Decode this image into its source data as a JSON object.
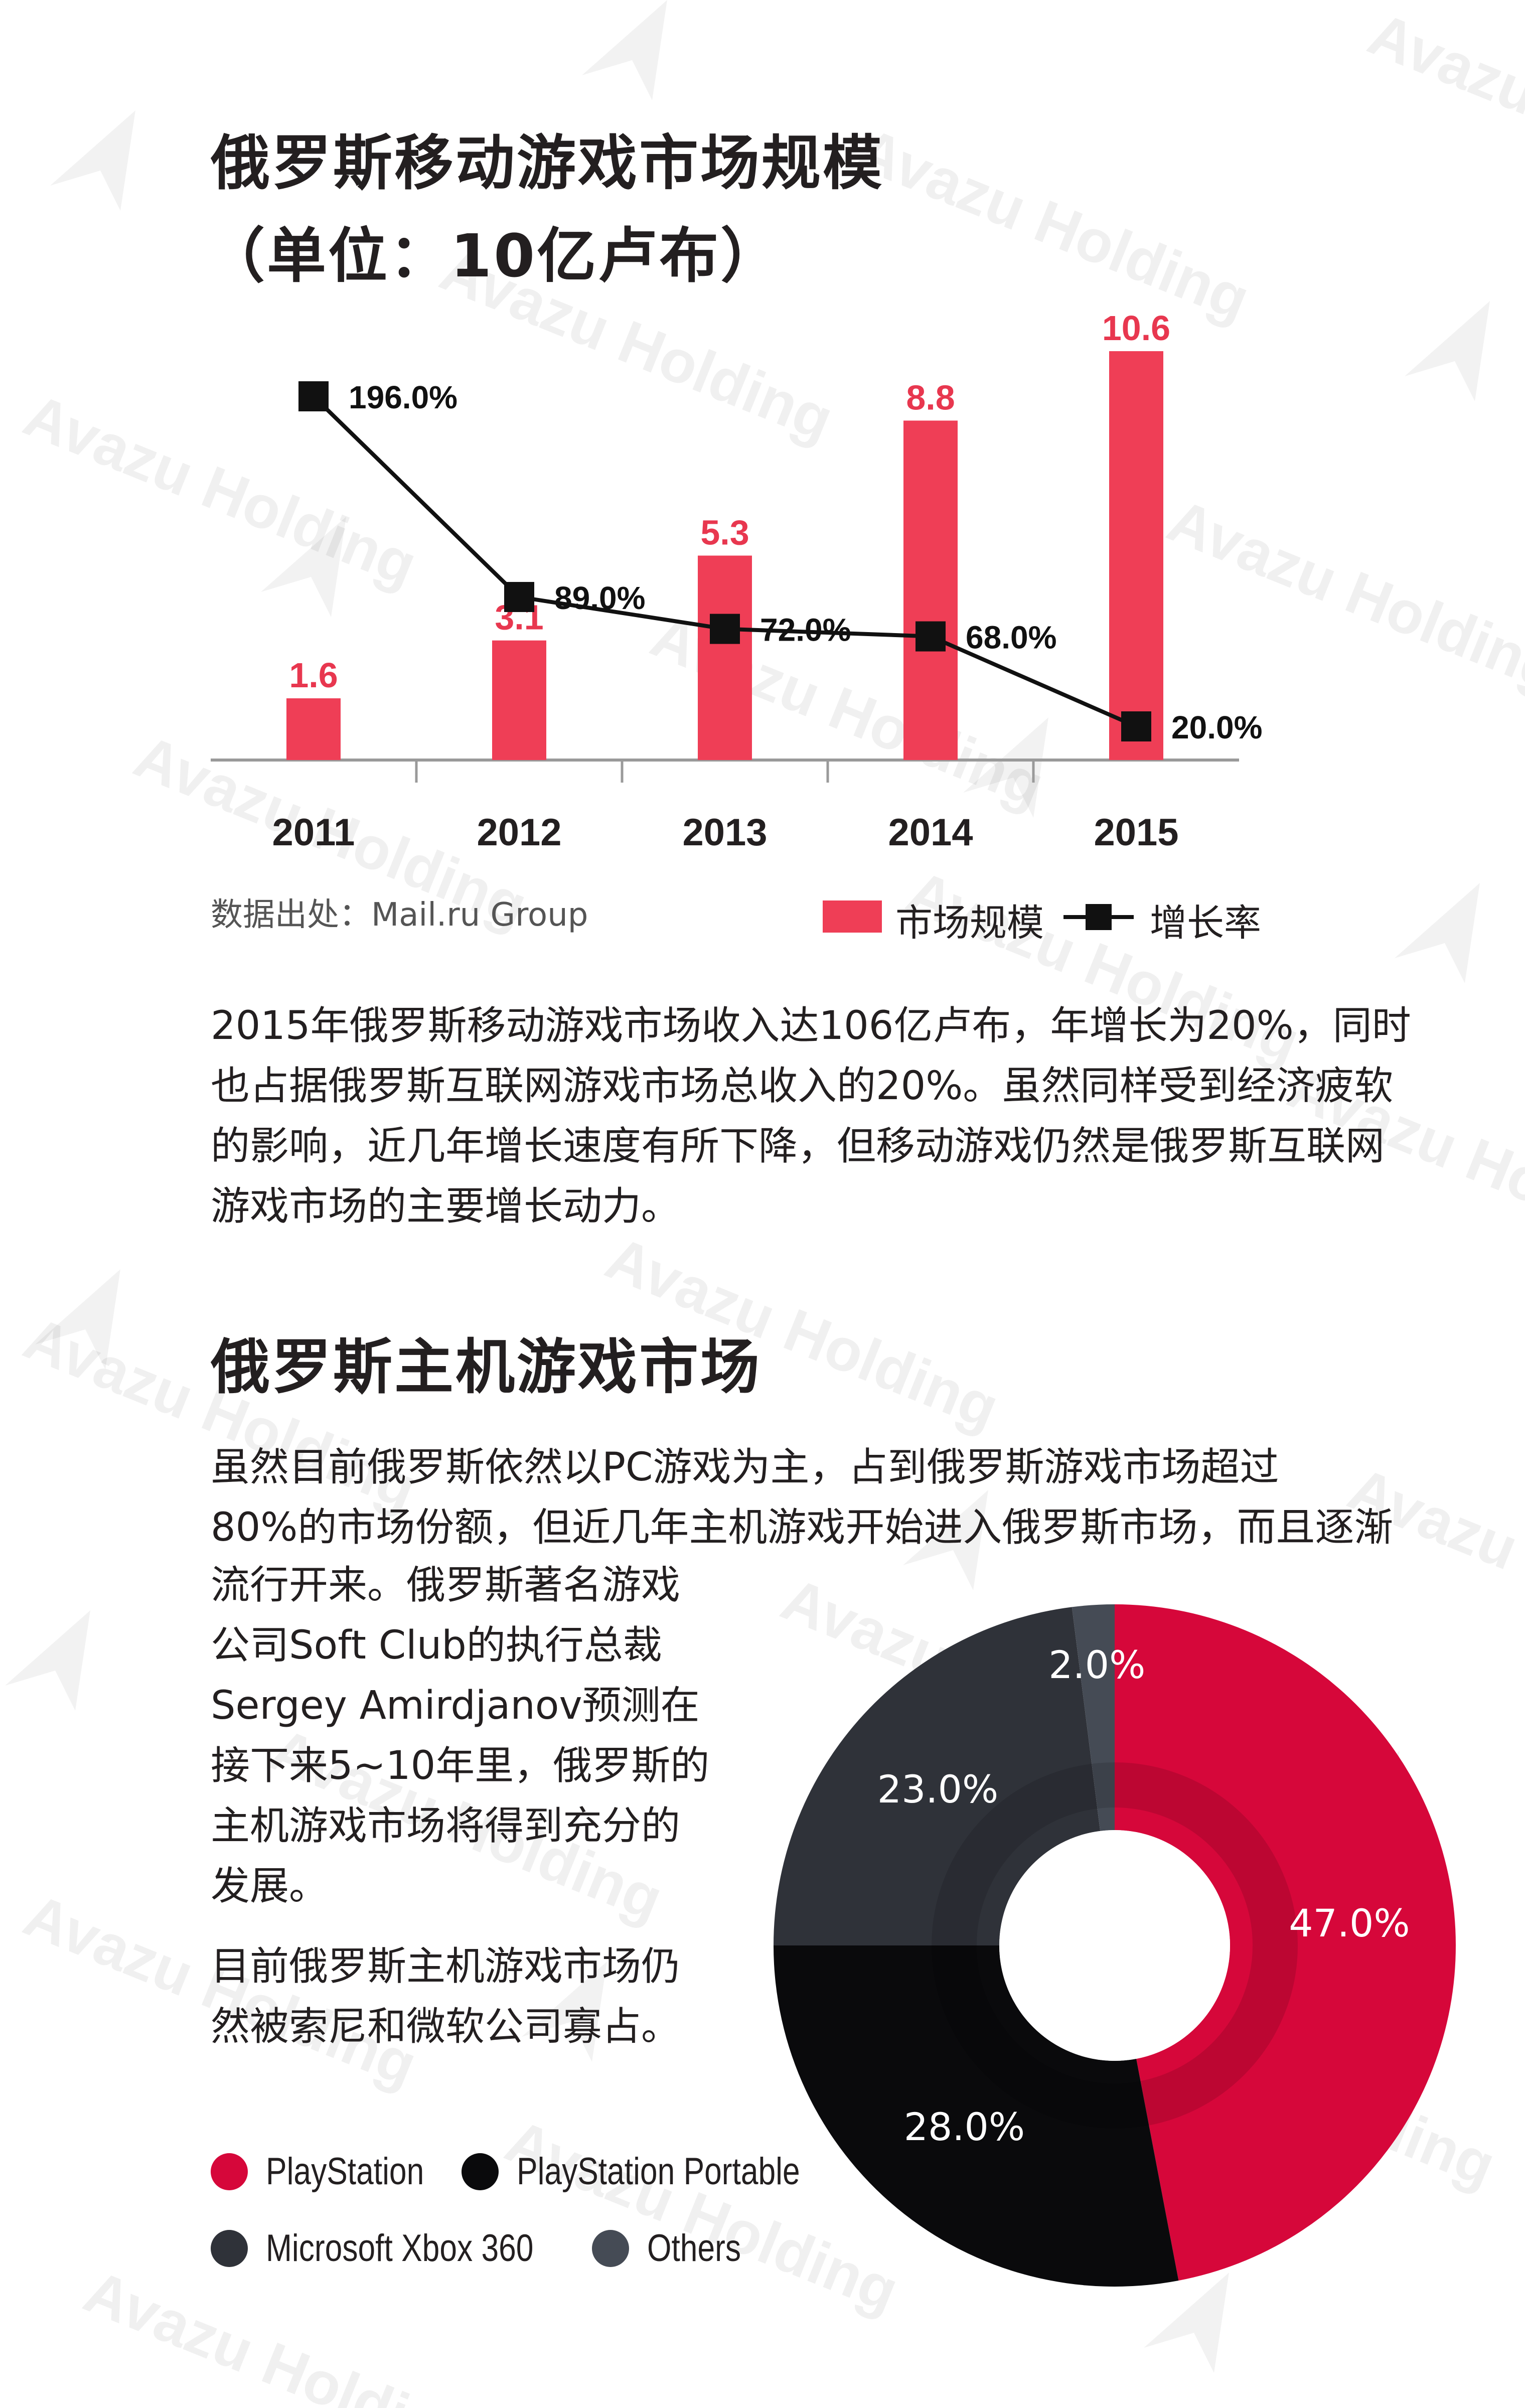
{
  "section1": {
    "title_line1": "俄罗斯移动游戏市场规模",
    "title_line2": "（单位：10亿卢布）",
    "source": "数据出处：Mail.ru Group",
    "legend_bar": "市场规模",
    "legend_line": "增长率",
    "paragraph_lines": [
      "2015年俄罗斯移动游戏市场收入达106亿卢布，年增长为20%，同时",
      "也占据俄罗斯互联网游戏市场总收入的20%。虽然同样受到经济疲软",
      "的影响，近几年增长速度有所下降，但移动游戏仍然是俄罗斯互联网",
      "游戏市场的主要增长动力。"
    ]
  },
  "section2": {
    "title": "俄罗斯主机游戏市场",
    "intro_lines": [
      "虽然目前俄罗斯依然以PC游戏为主，占到俄罗斯游戏市场超过",
      "80%的市场份额，但近几年主机游戏开始进入俄罗斯市场，而且逐渐"
    ],
    "side_lines": [
      "流行开来。俄罗斯著名游戏",
      "公司Soft Club的执行总裁",
      "Sergey Amirdjanov预测在",
      "接下来5~10年里，俄罗斯的",
      "主机游戏市场将得到充分的",
      "发展。"
    ],
    "side_lines2": [
      "目前俄罗斯主机游戏市场仍",
      "然被索尼和微软公司寡占。"
    ]
  },
  "watermark_text": "Avazu Holding",
  "colors": {
    "bar": "#ef3e56",
    "bar_label": "#e8374f",
    "line": "#111111",
    "playstation": "#d6073a",
    "psp": "#0a0a0c",
    "xbox": "#2f3239",
    "others": "#454b55"
  },
  "chart_data": [
    {
      "type": "bar",
      "categories": [
        "2011",
        "2012",
        "2013",
        "2014",
        "2015"
      ],
      "series": [
        {
          "name": "市场规模",
          "type": "bar",
          "values": [
            1.6,
            3.1,
            5.3,
            8.8,
            10.6
          ],
          "labels": [
            "1.6",
            "3.1",
            "5.3",
            "8.8",
            "10.6"
          ]
        },
        {
          "name": "增长率",
          "type": "line",
          "values": [
            196.0,
            89.0,
            72.0,
            68.0,
            20.0
          ],
          "labels": [
            "196.0%",
            "89.0%",
            "72.0%",
            "68.0%",
            "20.0%"
          ]
        }
      ]
    },
    {
      "type": "pie",
      "donut": true,
      "slices": [
        {
          "name": "PlayStation",
          "value": 47.0,
          "label": "47.0%",
          "color": "#d6073a"
        },
        {
          "name": "PlayStation Portable",
          "value": 28.0,
          "label": "28.0%",
          "color": "#0a0a0c"
        },
        {
          "name": "Microsoft Xbox 360",
          "value": 23.0,
          "label": "23.0%",
          "color": "#2f3239"
        },
        {
          "name": "Others",
          "value": 2.0,
          "label": "2.0%",
          "color": "#454b55"
        }
      ]
    }
  ]
}
